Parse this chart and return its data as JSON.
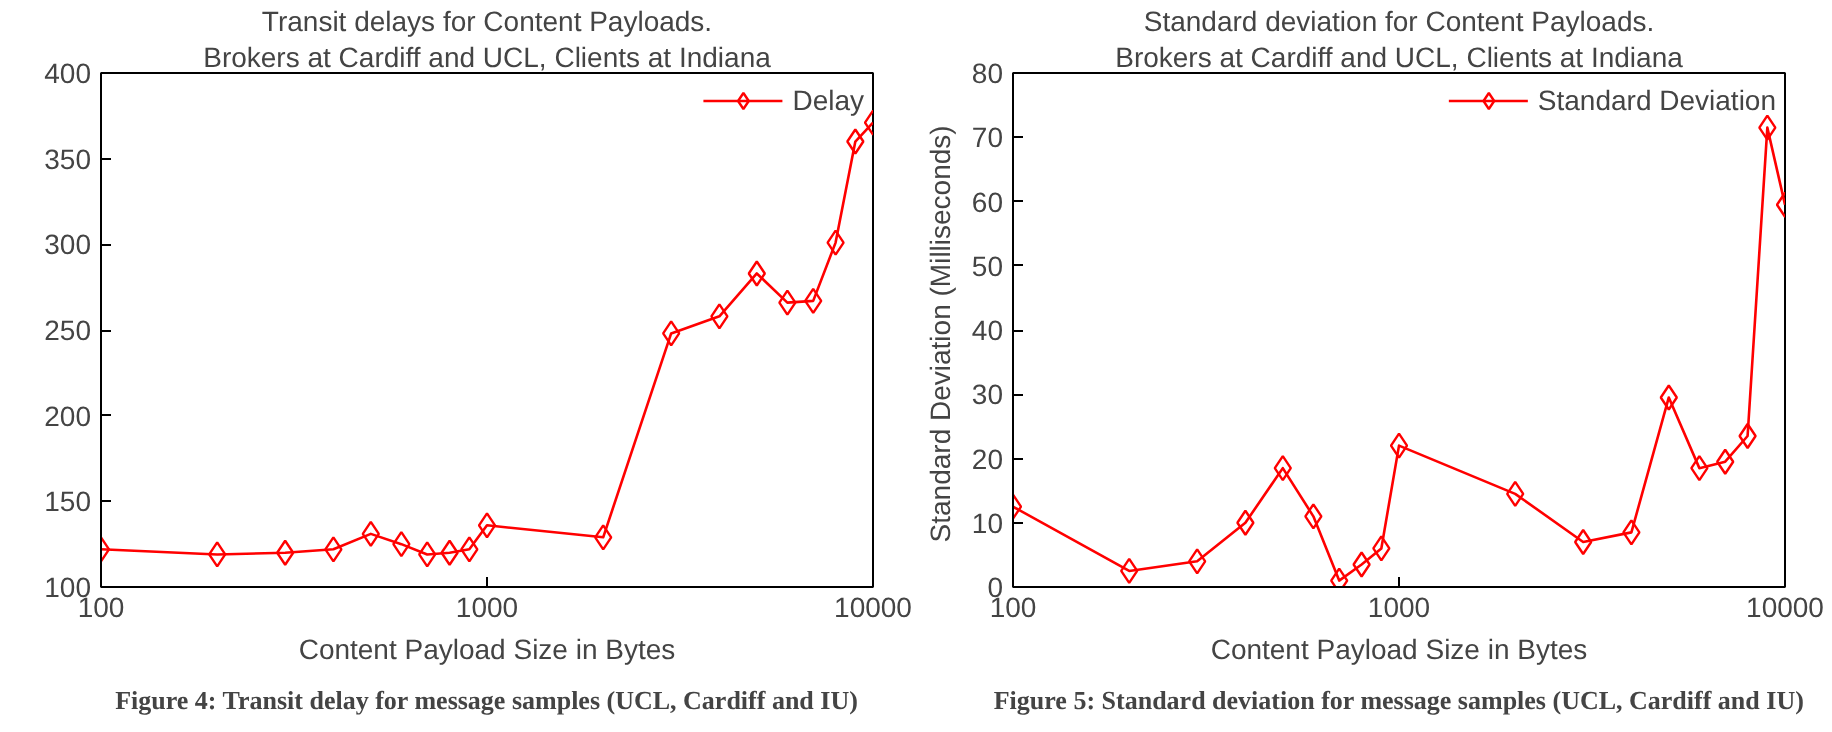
{
  "chart_data": [
    {
      "type": "line",
      "title": "Transit delays for Content Payloads.",
      "subtitle": "Brokers at Cardiff and UCL, Clients at Indiana",
      "xlabel": "Content Payload Size in Bytes",
      "annotations": [
        "Figure 4: Transit delay for message samples (UCL, Cardiff and IU)"
      ],
      "log": "x",
      "x": [
        100,
        200,
        300,
        400,
        500,
        600,
        700,
        800,
        900,
        1000,
        2000,
        3000,
        4000,
        5000,
        6000,
        7000,
        8000,
        9000,
        10000
      ],
      "xlim": [
        100,
        10000
      ],
      "xticks": [
        100,
        1000,
        10000
      ],
      "ylim": [
        100,
        400
      ],
      "yticks": [
        100,
        150,
        200,
        250,
        300,
        350,
        400
      ],
      "legend": "top right",
      "marker": "diamond",
      "line_style": "solid",
      "series": [
        {
          "name": "Delay",
          "color": "#ff0000",
          "values": [
            122,
            119,
            120,
            122,
            131,
            125,
            119,
            120,
            122,
            136,
            129,
            248,
            258,
            283,
            266,
            267,
            301,
            360,
            371
          ]
        }
      ]
    },
    {
      "type": "line",
      "title": "Standard deviation for Content Payloads.",
      "subtitle": "Brokers at Cardiff and UCL, Clients at Indiana",
      "xlabel": "Content Payload Size in Bytes",
      "ylabel": "Standard Deviation  (Milliseconds)",
      "annotations": [
        "Figure 5: Standard deviation for message samples (UCL, Cardiff and IU)"
      ],
      "log": "x",
      "x": [
        100,
        200,
        300,
        400,
        500,
        600,
        700,
        800,
        900,
        1000,
        2000,
        3000,
        4000,
        5000,
        6000,
        7000,
        8000,
        9000,
        10000
      ],
      "xlim": [
        100,
        10000
      ],
      "xticks": [
        100,
        1000,
        10000
      ],
      "ylim": [
        0,
        80
      ],
      "yticks": [
        0,
        10,
        20,
        30,
        40,
        50,
        60,
        70,
        80
      ],
      "legend": "top right",
      "marker": "diamond",
      "line_style": "solid",
      "series": [
        {
          "name": "Standard Deviation",
          "color": "#ff0000",
          "values": [
            12.5,
            2.5,
            4,
            10,
            18.5,
            11,
            1,
            3.5,
            6,
            22,
            14.5,
            7,
            8.5,
            29.5,
            18.5,
            19.5,
            23.5,
            71.5,
            59.5
          ]
        }
      ]
    }
  ]
}
